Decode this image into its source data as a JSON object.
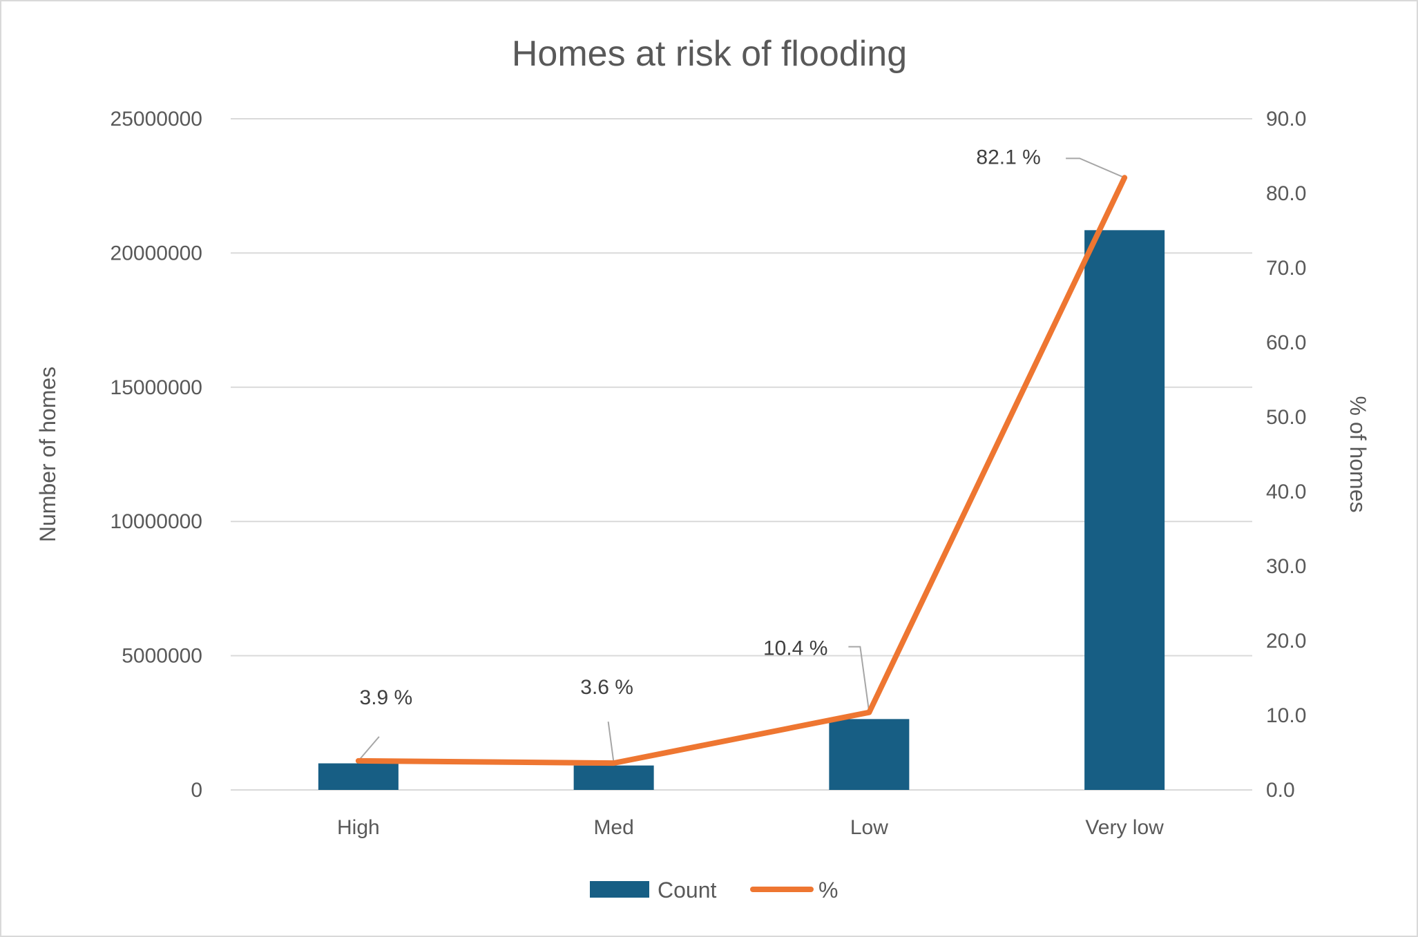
{
  "chart_data": {
    "type": "bar+line",
    "title": "Homes at risk of flooding",
    "categories": [
      "High",
      "Med",
      "Low",
      "Very low"
    ],
    "series": [
      {
        "name": "Count",
        "type": "bar",
        "axis": "left",
        "color": "#175E84",
        "values": [
          990000,
          910000,
          2640000,
          20850000
        ]
      },
      {
        "name": "%",
        "type": "line",
        "axis": "right",
        "color": "#EE7631",
        "values": [
          3.9,
          3.6,
          10.4,
          82.1
        ],
        "data_labels": [
          "3.9 %",
          "3.6 %",
          "10.4 %",
          "82.1 %"
        ]
      }
    ],
    "ylabel": "Number of homes",
    "ylim": [
      0,
      25000000
    ],
    "yticks": [
      "0",
      "5000000",
      "10000000",
      "15000000",
      "20000000",
      "25000000"
    ],
    "y2label": "% of homes",
    "y2lim": [
      0,
      90
    ],
    "y2ticks": [
      "0.0",
      "10.0",
      "20.0",
      "30.0",
      "40.0",
      "50.0",
      "60.0",
      "70.0",
      "80.0",
      "90.0"
    ],
    "grid": true,
    "legend": "bottom"
  }
}
